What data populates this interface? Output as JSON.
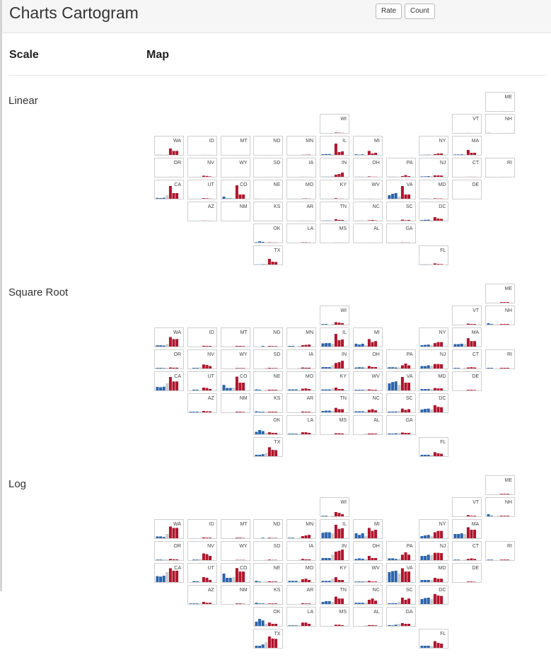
{
  "header": {
    "title": "Charts Cartogram",
    "rate_label": "Rate",
    "count_label": "Count"
  },
  "columns": {
    "scale": "Scale",
    "map": "Map"
  },
  "colors": {
    "blue": "#2b64ad",
    "gray": "#cccccc",
    "red": "#b0152c"
  },
  "chart_data": {
    "type": "bar",
    "series_colors": [
      "blue",
      "blue",
      "blue",
      "gray",
      "red",
      "red",
      "red"
    ],
    "bar_values_note": "",
    "scales": [
      {
        "id": "linear",
        "label": "Linear",
        "kind": "linear"
      },
      {
        "id": "sqrt",
        "label": "Square Root",
        "kind": "sqrt"
      },
      {
        "id": "log",
        "label": "Log",
        "kind": "log"
      }
    ],
    "max_value": 100,
    "states": [
      {
        "abbr": "ME",
        "col": 10,
        "row": 0,
        "values": [
          0,
          0,
          0,
          0,
          0.2,
          0.2,
          0.2
        ]
      },
      {
        "abbr": "WI",
        "col": 5,
        "row": 1,
        "values": [
          0.2,
          0.2,
          0,
          0.2,
          3,
          2,
          1
        ]
      },
      {
        "abbr": "VT",
        "col": 9,
        "row": 1,
        "values": [
          0,
          0,
          0,
          0,
          0.5,
          0.2,
          0.2
        ]
      },
      {
        "abbr": "NH",
        "col": 10,
        "row": 1,
        "values": [
          1,
          0.2,
          0,
          0.2,
          0.2,
          0.2,
          0.2
        ]
      },
      {
        "abbr": "WA",
        "col": 0,
        "row": 2,
        "values": [
          0.8,
          0.8,
          0.5,
          3,
          45,
          28,
          28
        ]
      },
      {
        "abbr": "ID",
        "col": 1,
        "row": 2,
        "values": [
          0,
          0,
          0,
          0,
          0.3,
          0.2,
          0.2
        ]
      },
      {
        "abbr": "MT",
        "col": 2,
        "row": 2,
        "values": [
          0,
          0,
          0,
          0,
          0.2,
          0.2,
          0.1
        ]
      },
      {
        "abbr": "ND",
        "col": 3,
        "row": 2,
        "values": [
          0,
          0,
          0.2,
          0,
          0.2,
          0.1,
          0.1
        ]
      },
      {
        "abbr": "MN",
        "col": 4,
        "row": 2,
        "values": [
          0.2,
          0.2,
          0,
          0.3,
          1,
          1.5,
          2
        ]
      },
      {
        "abbr": "IL",
        "col": 5,
        "row": 2,
        "values": [
          5,
          6,
          6,
          4,
          80,
          20,
          25
        ]
      },
      {
        "abbr": "MI",
        "col": 6,
        "row": 2,
        "values": [
          4,
          2,
          4,
          1,
          28,
          10,
          15
        ]
      },
      {
        "abbr": "NY",
        "col": 8,
        "row": 2,
        "values": [
          1,
          1.5,
          2,
          1,
          6,
          10,
          10
        ]
      },
      {
        "abbr": "MA",
        "col": 9,
        "row": 2,
        "values": [
          3,
          3,
          4,
          3,
          35,
          15,
          15
        ]
      },
      {
        "abbr": "OR",
        "col": 0,
        "row": 3,
        "values": [
          0.2,
          0.2,
          0.1,
          0.2,
          0.5,
          0.3,
          0.3
        ]
      },
      {
        "abbr": "NV",
        "col": 1,
        "row": 3,
        "values": [
          0,
          0.2,
          0.2,
          0.5,
          8,
          6,
          3
        ]
      },
      {
        "abbr": "WY",
        "col": 2,
        "row": 3,
        "values": [
          0,
          0,
          0,
          0,
          0.1,
          0.1,
          0.1
        ]
      },
      {
        "abbr": "SD",
        "col": 3,
        "row": 3,
        "values": [
          0,
          0,
          0,
          0.2,
          0.2,
          0.1,
          0.1
        ]
      },
      {
        "abbr": "IA",
        "col": 4,
        "row": 3,
        "values": [
          0,
          0,
          0,
          0.2,
          0.5,
          0.3,
          0.3
        ]
      },
      {
        "abbr": "IN",
        "col": 5,
        "row": 3,
        "values": [
          1,
          1,
          1,
          5,
          15,
          20,
          30
        ]
      },
      {
        "abbr": "OH",
        "col": 6,
        "row": 3,
        "values": [
          0.5,
          0.8,
          0.6,
          0.5,
          3,
          1,
          1
        ]
      },
      {
        "abbr": "PA",
        "col": 7,
        "row": 3,
        "values": [
          0.8,
          0.8,
          0.5,
          0.6,
          5,
          12,
          5
        ]
      },
      {
        "abbr": "NJ",
        "col": 8,
        "row": 3,
        "values": [
          3,
          3,
          5,
          4,
          10,
          10,
          9
        ]
      },
      {
        "abbr": "CT",
        "col": 9,
        "row": 3,
        "values": [
          0.2,
          0.2,
          0,
          0.2,
          0.5,
          0.8,
          0.5
        ]
      },
      {
        "abbr": "RI",
        "col": 10,
        "row": 3,
        "values": [
          0.2,
          0.2,
          0,
          0,
          0.2,
          0.2,
          0.2
        ]
      },
      {
        "abbr": "CA",
        "col": 0,
        "row": 4,
        "values": [
          6,
          5,
          7,
          25,
          90,
          40,
          40
        ]
      },
      {
        "abbr": "UT",
        "col": 1,
        "row": 4,
        "values": [
          0,
          0.3,
          0.3,
          0,
          4,
          3,
          1
        ]
      },
      {
        "abbr": "CO",
        "col": 2,
        "row": 4,
        "values": [
          15,
          3,
          3,
          4,
          95,
          30,
          30
        ]
      },
      {
        "abbr": "NE",
        "col": 3,
        "row": 4,
        "values": [
          0.5,
          0.2,
          0,
          0.2,
          0.3,
          0.2,
          0.2
        ]
      },
      {
        "abbr": "MO",
        "col": 4,
        "row": 4,
        "values": [
          0.5,
          0.5,
          0.5,
          0.2,
          1.5,
          2,
          1
        ]
      },
      {
        "abbr": "KY",
        "col": 5,
        "row": 4,
        "values": [
          0.5,
          0.5,
          0.5,
          2,
          4,
          1,
          1
        ]
      },
      {
        "abbr": "WV",
        "col": 6,
        "row": 4,
        "values": [
          0.2,
          0.2,
          0.2,
          0.5,
          0.5,
          0.2,
          0.2
        ]
      },
      {
        "abbr": "VA",
        "col": 7,
        "row": 4,
        "values": [
          25,
          35,
          40,
          15,
          90,
          30,
          30
        ]
      },
      {
        "abbr": "MD",
        "col": 8,
        "row": 4,
        "values": [
          1,
          1,
          1,
          1,
          3,
          2,
          2
        ]
      },
      {
        "abbr": "DE",
        "col": 9,
        "row": 4,
        "values": [
          0,
          0,
          0,
          0,
          0.2,
          0.2,
          0.1
        ]
      },
      {
        "abbr": "AZ",
        "col": 1,
        "row": 5,
        "values": [
          0.2,
          0.2,
          0.2,
          0.2,
          1,
          0.5,
          0.5
        ]
      },
      {
        "abbr": "NM",
        "col": 2,
        "row": 5,
        "values": [
          0,
          0,
          0,
          0,
          0.2,
          0.2,
          0.1
        ]
      },
      {
        "abbr": "KS",
        "col": 3,
        "row": 5,
        "values": [
          0.5,
          0.2,
          0.2,
          0.2,
          0.2,
          0.2,
          0.2
        ]
      },
      {
        "abbr": "AR",
        "col": 4,
        "row": 5,
        "values": [
          0,
          0,
          0,
          0,
          0.3,
          0.2,
          0.2
        ]
      },
      {
        "abbr": "TN",
        "col": 5,
        "row": 5,
        "values": [
          1,
          1.5,
          1.5,
          1,
          10,
          5,
          5
        ]
      },
      {
        "abbr": "NC",
        "col": 6,
        "row": 5,
        "values": [
          0.5,
          0.5,
          0.5,
          0.5,
          3,
          5,
          2
        ]
      },
      {
        "abbr": "SC",
        "col": 7,
        "row": 5,
        "values": [
          0.3,
          0.3,
          0.3,
          1,
          7,
          3,
          5
        ]
      },
      {
        "abbr": "DC",
        "col": 8,
        "row": 5,
        "values": [
          4,
          6,
          7,
          4,
          25,
          15,
          13
        ]
      },
      {
        "abbr": "OK",
        "col": 3,
        "row": 6,
        "values": [
          3,
          9,
          5,
          1,
          2,
          1,
          1
        ]
      },
      {
        "abbr": "LA",
        "col": 4,
        "row": 6,
        "values": [
          0.2,
          0.2,
          0.2,
          0.2,
          2,
          2,
          1
        ]
      },
      {
        "abbr": "MS",
        "col": 5,
        "row": 6,
        "values": [
          0,
          0,
          0,
          0,
          0.5,
          0.5,
          0.3
        ]
      },
      {
        "abbr": "AL",
        "col": 6,
        "row": 6,
        "values": [
          0,
          0,
          0,
          0.2,
          0.3,
          0.3,
          0.2
        ]
      },
      {
        "abbr": "GA",
        "col": 7,
        "row": 6,
        "values": [
          0.3,
          0.2,
          0.5,
          1,
          1.5,
          1,
          1
        ]
      },
      {
        "abbr": "TX",
        "col": 3,
        "row": 7,
        "values": [
          1,
          1,
          2,
          5,
          40,
          20,
          18
        ]
      },
      {
        "abbr": "FL",
        "col": 8,
        "row": 7,
        "values": [
          1,
          1,
          1,
          1,
          8,
          4,
          3
        ]
      }
    ]
  }
}
